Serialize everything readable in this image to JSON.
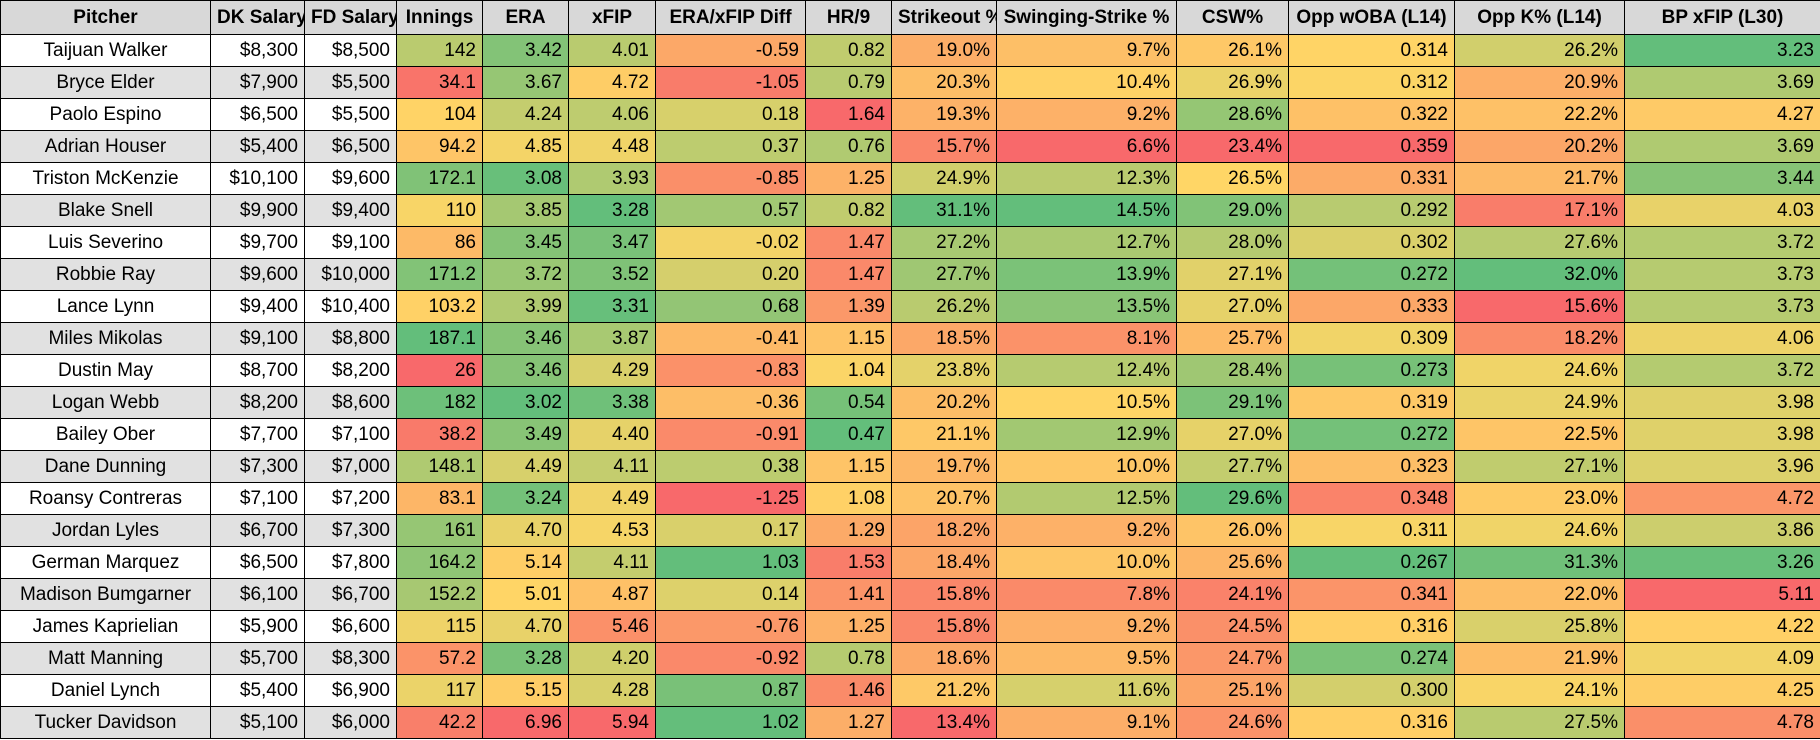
{
  "headers": [
    "Pitcher",
    "DK Salary",
    "FD Salary",
    "Innings",
    "ERA",
    "xFIP",
    "ERA/xFIP Diff",
    "HR/9",
    "Strikeout %",
    "Swinging-Strike %",
    "CSW%",
    "Opp wOBA (L14)",
    "Opp K% (L14)",
    "BP xFIP (L30)"
  ],
  "rows": [
    [
      "Taijuan Walker",
      "$8,300",
      "$8,500",
      "142",
      "3.42",
      "4.01",
      "-0.59",
      "0.82",
      "19.0%",
      "9.7%",
      "26.1%",
      "0.314",
      "26.2%",
      "3.23"
    ],
    [
      "Bryce Elder",
      "$7,900",
      "$5,500",
      "34.1",
      "3.67",
      "4.72",
      "-1.05",
      "0.79",
      "20.3%",
      "10.4%",
      "26.9%",
      "0.312",
      "20.9%",
      "3.69"
    ],
    [
      "Paolo Espino",
      "$6,500",
      "$5,500",
      "104",
      "4.24",
      "4.06",
      "0.18",
      "1.64",
      "19.3%",
      "9.2%",
      "28.6%",
      "0.322",
      "22.2%",
      "4.27"
    ],
    [
      "Adrian Houser",
      "$5,400",
      "$6,500",
      "94.2",
      "4.85",
      "4.48",
      "0.37",
      "0.76",
      "15.7%",
      "6.6%",
      "23.4%",
      "0.359",
      "20.2%",
      "3.69"
    ],
    [
      "Triston McKenzie",
      "$10,100",
      "$9,600",
      "172.1",
      "3.08",
      "3.93",
      "-0.85",
      "1.25",
      "24.9%",
      "12.3%",
      "26.5%",
      "0.331",
      "21.7%",
      "3.44"
    ],
    [
      "Blake Snell",
      "$9,900",
      "$9,400",
      "110",
      "3.85",
      "3.28",
      "0.57",
      "0.82",
      "31.1%",
      "14.5%",
      "29.0%",
      "0.292",
      "17.1%",
      "4.03"
    ],
    [
      "Luis Severino",
      "$9,700",
      "$9,100",
      "86",
      "3.45",
      "3.47",
      "-0.02",
      "1.47",
      "27.2%",
      "12.7%",
      "28.0%",
      "0.302",
      "27.6%",
      "3.72"
    ],
    [
      "Robbie Ray",
      "$9,600",
      "$10,000",
      "171.2",
      "3.72",
      "3.52",
      "0.20",
      "1.47",
      "27.7%",
      "13.9%",
      "27.1%",
      "0.272",
      "32.0%",
      "3.73"
    ],
    [
      "Lance Lynn",
      "$9,400",
      "$10,400",
      "103.2",
      "3.99",
      "3.31",
      "0.68",
      "1.39",
      "26.2%",
      "13.5%",
      "27.0%",
      "0.333",
      "15.6%",
      "3.73"
    ],
    [
      "Miles Mikolas",
      "$9,100",
      "$8,800",
      "187.1",
      "3.46",
      "3.87",
      "-0.41",
      "1.15",
      "18.5%",
      "8.1%",
      "25.7%",
      "0.309",
      "18.2%",
      "4.06"
    ],
    [
      "Dustin May",
      "$8,700",
      "$8,200",
      "26",
      "3.46",
      "4.29",
      "-0.83",
      "1.04",
      "23.8%",
      "12.4%",
      "28.4%",
      "0.273",
      "24.6%",
      "3.72"
    ],
    [
      "Logan Webb",
      "$8,200",
      "$8,600",
      "182",
      "3.02",
      "3.38",
      "-0.36",
      "0.54",
      "20.2%",
      "10.5%",
      "29.1%",
      "0.319",
      "24.9%",
      "3.98"
    ],
    [
      "Bailey Ober",
      "$7,700",
      "$7,100",
      "38.2",
      "3.49",
      "4.40",
      "-0.91",
      "0.47",
      "21.1%",
      "12.9%",
      "27.0%",
      "0.272",
      "22.5%",
      "3.98"
    ],
    [
      "Dane Dunning",
      "$7,300",
      "$7,000",
      "148.1",
      "4.49",
      "4.11",
      "0.38",
      "1.15",
      "19.7%",
      "10.0%",
      "27.7%",
      "0.323",
      "27.1%",
      "3.96"
    ],
    [
      "Roansy Contreras",
      "$7,100",
      "$7,200",
      "83.1",
      "3.24",
      "4.49",
      "-1.25",
      "1.08",
      "20.7%",
      "12.5%",
      "29.6%",
      "0.348",
      "23.0%",
      "4.72"
    ],
    [
      "Jordan Lyles",
      "$6,700",
      "$7,300",
      "161",
      "4.70",
      "4.53",
      "0.17",
      "1.29",
      "18.2%",
      "9.2%",
      "26.0%",
      "0.311",
      "24.6%",
      "3.86"
    ],
    [
      "German Marquez",
      "$6,500",
      "$7,800",
      "164.2",
      "5.14",
      "4.11",
      "1.03",
      "1.53",
      "18.4%",
      "10.0%",
      "25.6%",
      "0.267",
      "31.3%",
      "3.26"
    ],
    [
      "Madison Bumgarner",
      "$6,100",
      "$6,700",
      "152.2",
      "5.01",
      "4.87",
      "0.14",
      "1.41",
      "15.8%",
      "7.8%",
      "24.1%",
      "0.341",
      "22.0%",
      "5.11"
    ],
    [
      "James Kaprielian",
      "$5,900",
      "$6,600",
      "115",
      "4.70",
      "5.46",
      "-0.76",
      "1.25",
      "15.8%",
      "9.2%",
      "24.5%",
      "0.316",
      "25.8%",
      "4.22"
    ],
    [
      "Matt Manning",
      "$5,700",
      "$8,300",
      "57.2",
      "3.28",
      "4.20",
      "-0.92",
      "0.78",
      "18.6%",
      "9.5%",
      "24.7%",
      "0.274",
      "21.9%",
      "4.09"
    ],
    [
      "Daniel Lynch",
      "$5,400",
      "$6,900",
      "117",
      "5.15",
      "4.28",
      "0.87",
      "1.46",
      "21.2%",
      "11.6%",
      "25.1%",
      "0.300",
      "24.1%",
      "4.25"
    ],
    [
      "Tucker Davidson",
      "$5,100",
      "$6,000",
      "42.2",
      "6.96",
      "5.94",
      "1.02",
      "1.27",
      "13.4%",
      "9.1%",
      "24.6%",
      "0.316",
      "27.5%",
      "4.78"
    ]
  ],
  "colors": {
    "header_bg": "#d8d8d8",
    "row_odd_bg": "#ffffff",
    "row_even_bg": "#e1e1e1",
    "scale_good": "#63be7b",
    "scale_mid": "#ffd666",
    "scale_bad": "#f8696b"
  }
}
